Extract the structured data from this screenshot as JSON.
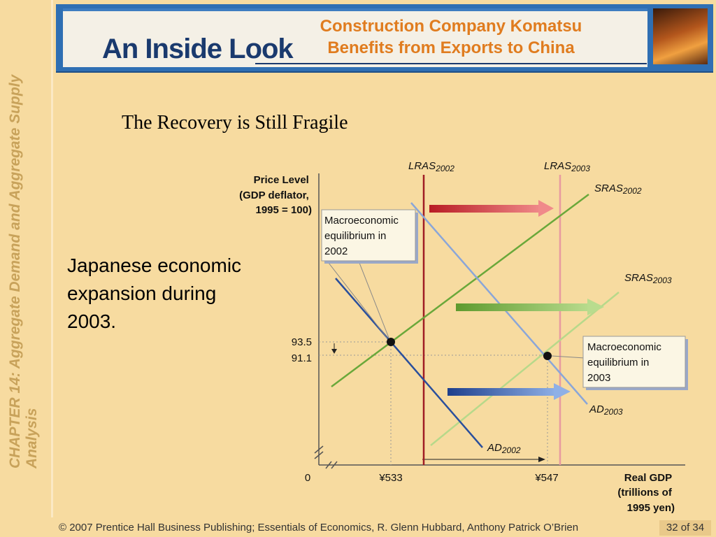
{
  "sidebar": {
    "chapter_text": "CHAPTER 14:  Aggregate Demand and Aggregate Supply Analysis"
  },
  "banner": {
    "inside_look": "An Inside Look",
    "title_line1": "Construction Company Komatsu",
    "title_line2": "Benefits from Exports to China"
  },
  "slide": {
    "title": "The Recovery is Still Fragile",
    "side_text": "Japanese economic expansion during 2003."
  },
  "diagram": {
    "y_axis_label": [
      "Price Level",
      "(GDP deflator,",
      "1995 = 100)"
    ],
    "x_axis_label": [
      "Real GDP",
      "(trillions of",
      "1995 yen)"
    ],
    "x_ticks": [
      "0",
      "¥533",
      "¥547"
    ],
    "y_ticks": [
      "93.5",
      "91.1"
    ],
    "curves": {
      "lras2002": {
        "base": "LRAS",
        "sub": "2002",
        "color": "#a01c24"
      },
      "lras2003": {
        "base": "LRAS",
        "sub": "2003",
        "color": "#e89aa0"
      },
      "sras2002": {
        "base": "SRAS",
        "sub": "2002",
        "color": "#6aa83a"
      },
      "sras2003": {
        "base": "SRAS",
        "sub": "2003",
        "color": "#b7d98a"
      },
      "ad2002": {
        "base": "AD",
        "sub": "2002",
        "color": "#2a4f9c"
      },
      "ad2003": {
        "base": "AD",
        "sub": "2003",
        "color": "#8aa6d8"
      }
    },
    "callout_2002": [
      "Macroeconomic",
      "equilibrium in",
      "2002"
    ],
    "callout_2003": [
      "Macroeconomic",
      "equilibrium in",
      "2003"
    ]
  },
  "footer": {
    "copyright": "© 2007 Prentice Hall Business Publishing; Essentials of Economics,  R. Glenn Hubbard, Anthony Patrick O’Brien",
    "page": "32 of 34"
  }
}
